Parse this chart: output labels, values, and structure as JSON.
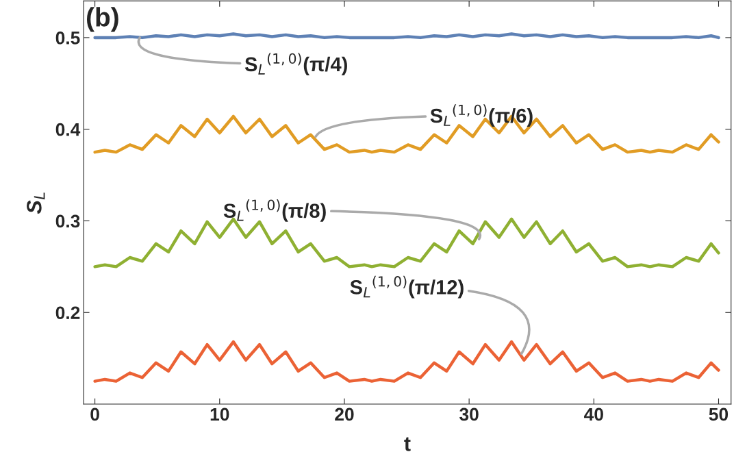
{
  "chart_data": {
    "type": "line",
    "xlabel": "t",
    "ylabel": "S$_{L}$",
    "x": [
      0,
      0.8,
      1.7,
      2.8,
      3.8,
      4.9,
      5.9,
      6.9,
      8.0,
      9.0,
      10.0,
      11.1,
      12.1,
      13.2,
      14.2,
      15.3,
      16.3,
      17.3,
      18.4,
      19.4,
      20.4,
      21.6,
      22.2,
      22.9,
      24.0,
      25.1,
      26.1,
      27.2,
      28.2,
      29.2,
      30.3,
      31.3,
      32.4,
      33.4,
      34.4,
      35.4,
      36.5,
      37.5,
      38.6,
      39.6,
      40.7,
      41.7,
      42.7,
      43.8,
      44.5,
      45.2,
      46.3,
      47.4,
      48.4,
      49.4,
      50.0
    ],
    "series": [
      {
        "color": "#5e81b5",
        "values": [
          0.5,
          0.5,
          0.5,
          0.501,
          0.5,
          0.502,
          0.501,
          0.503,
          0.501,
          0.503,
          0.502,
          0.504,
          0.502,
          0.503,
          0.501,
          0.503,
          0.501,
          0.502,
          0.5,
          0.501,
          0.5,
          0.5,
          0.5,
          0.5,
          0.5,
          0.501,
          0.5,
          0.502,
          0.501,
          0.503,
          0.501,
          0.503,
          0.502,
          0.504,
          0.502,
          0.503,
          0.501,
          0.503,
          0.501,
          0.502,
          0.5,
          0.501,
          0.5,
          0.5,
          0.5,
          0.5,
          0.5,
          0.501,
          0.5,
          0.502,
          0.5
        ]
      },
      {
        "color": "#e19c24",
        "values": [
          0.375,
          0.377,
          0.375,
          0.383,
          0.378,
          0.394,
          0.385,
          0.404,
          0.392,
          0.411,
          0.396,
          0.414,
          0.396,
          0.411,
          0.392,
          0.404,
          0.385,
          0.394,
          0.378,
          0.383,
          0.375,
          0.377,
          0.375,
          0.377,
          0.375,
          0.383,
          0.378,
          0.394,
          0.385,
          0.404,
          0.392,
          0.411,
          0.396,
          0.414,
          0.396,
          0.411,
          0.392,
          0.404,
          0.385,
          0.394,
          0.378,
          0.383,
          0.375,
          0.377,
          0.375,
          0.377,
          0.375,
          0.383,
          0.378,
          0.394,
          0.386
        ]
      },
      {
        "color": "#8fb032",
        "values": [
          0.25,
          0.252,
          0.25,
          0.26,
          0.256,
          0.275,
          0.266,
          0.289,
          0.275,
          0.299,
          0.282,
          0.302,
          0.282,
          0.299,
          0.275,
          0.289,
          0.266,
          0.275,
          0.256,
          0.26,
          0.25,
          0.252,
          0.25,
          0.252,
          0.25,
          0.26,
          0.256,
          0.275,
          0.266,
          0.289,
          0.275,
          0.299,
          0.282,
          0.302,
          0.282,
          0.299,
          0.275,
          0.289,
          0.266,
          0.275,
          0.256,
          0.26,
          0.25,
          0.252,
          0.25,
          0.252,
          0.25,
          0.26,
          0.256,
          0.275,
          0.265
        ]
      },
      {
        "color": "#eb6235",
        "values": [
          0.125,
          0.127,
          0.125,
          0.134,
          0.129,
          0.145,
          0.136,
          0.157,
          0.144,
          0.165,
          0.148,
          0.168,
          0.148,
          0.165,
          0.144,
          0.157,
          0.136,
          0.145,
          0.129,
          0.134,
          0.125,
          0.127,
          0.125,
          0.127,
          0.125,
          0.134,
          0.129,
          0.145,
          0.136,
          0.157,
          0.144,
          0.165,
          0.148,
          0.168,
          0.148,
          0.165,
          0.144,
          0.157,
          0.136,
          0.145,
          0.129,
          0.134,
          0.125,
          0.127,
          0.125,
          0.127,
          0.125,
          0.134,
          0.129,
          0.145,
          0.137
        ]
      }
    ],
    "annotations": [
      "(b)",
      {
        "text": "S$_{L}$$^{(1,0)}$(π/4)",
        "x": 3.6,
        "y": 0.5
      },
      {
        "text": "S$_{L}$$^{(1,0)}$(π/6)",
        "x": 17.7,
        "y": 0.392
      },
      {
        "text": "S$_{L}$$^{(1,0)}$(π/8)",
        "x": 30.8,
        "y": 0.28
      },
      {
        "text": "S$_{L}$$^{(1,0)}$(π/12)",
        "x": 34.2,
        "y": 0.155
      }
    ],
    "xlim": [
      -0.9,
      51
    ],
    "ylim": [
      0.1,
      0.54
    ],
    "xticks": [
      0,
      10,
      20,
      30,
      40,
      50
    ],
    "yticks": [
      0.2,
      0.3,
      0.4,
      0.5
    ],
    "grid": false,
    "legend": false,
    "marker": "none",
    "line_style": "solid"
  }
}
